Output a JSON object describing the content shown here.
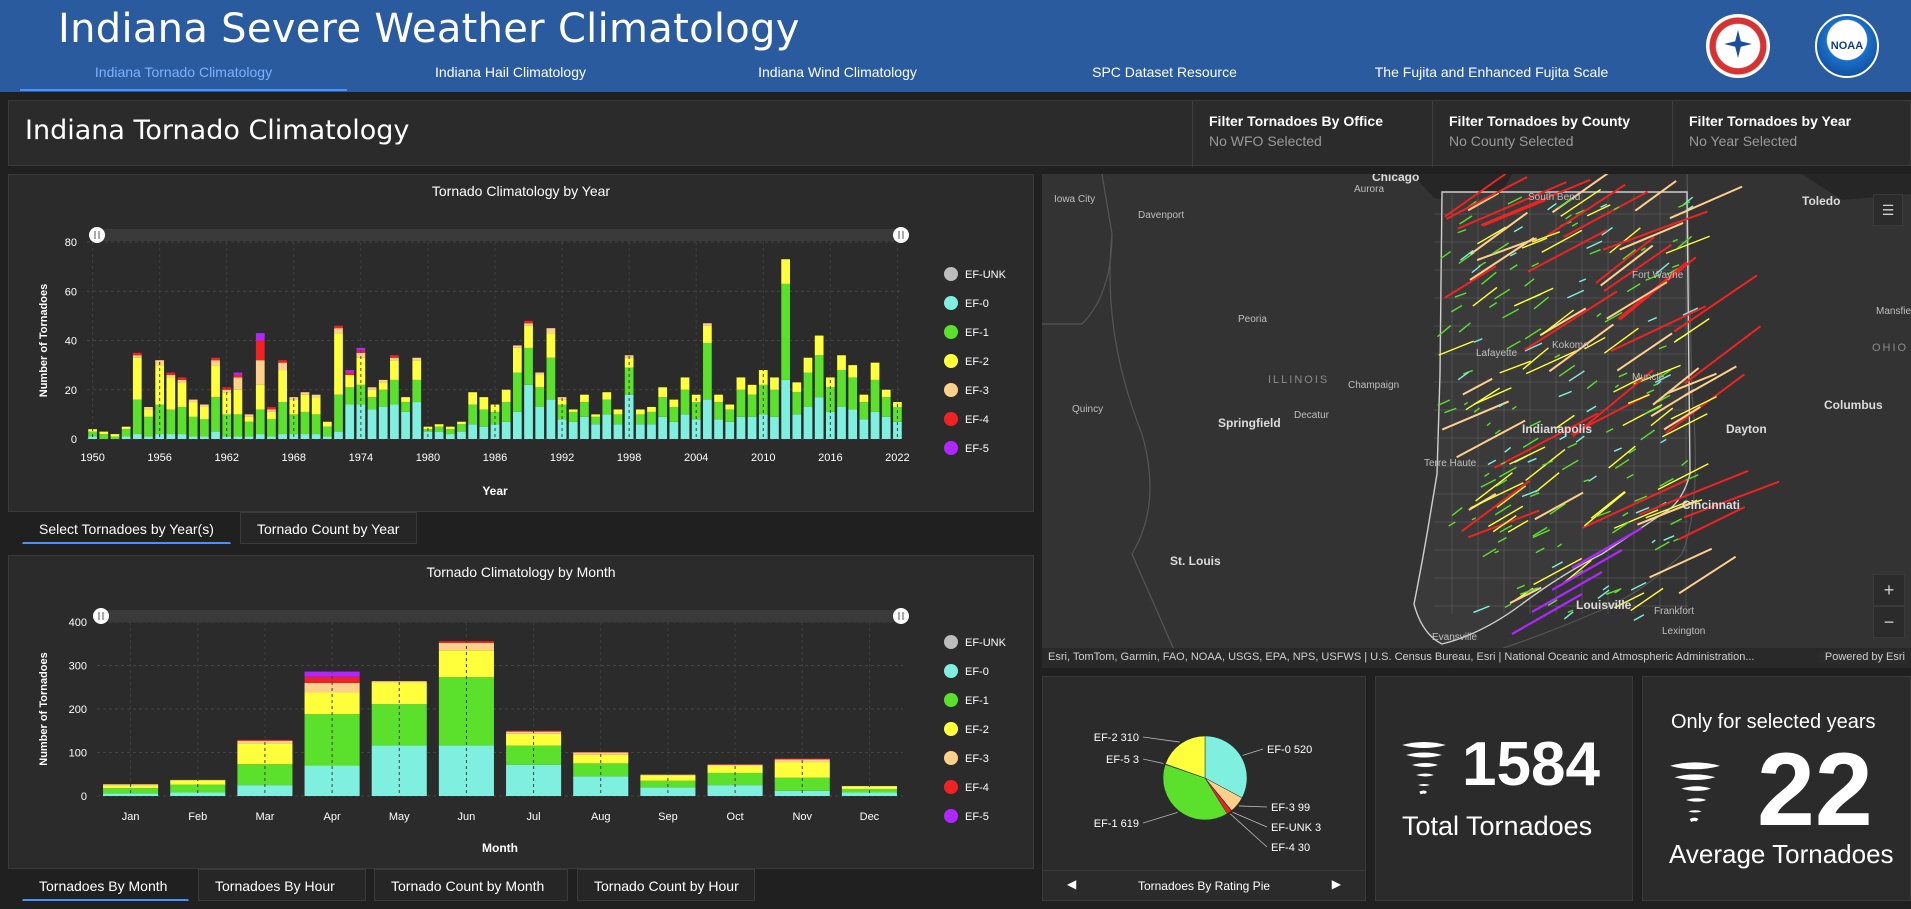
{
  "header": {
    "title": "Indiana Severe Weather Climatology",
    "nav": [
      {
        "label": "Indiana Tornado Climatology",
        "active": true
      },
      {
        "label": "Indiana Hail Climatology",
        "active": false
      },
      {
        "label": "Indiana Wind Climatology",
        "active": false
      },
      {
        "label": "SPC Dataset Resource",
        "active": false
      },
      {
        "label": "The Fujita and Enhanced Fujita Scale",
        "active": false
      }
    ],
    "logos": [
      "nws-logo",
      "noaa-logo"
    ],
    "noaa_text": "NOAA"
  },
  "page": {
    "title": "Indiana Tornado Climatology",
    "filters": [
      {
        "label": "Filter Tornadoes By Office",
        "value": "No WFO Selected"
      },
      {
        "label": "Filter Tornadoes by County",
        "value": "No County Selected"
      },
      {
        "label": "Filter Tornadoes by Year",
        "value": "No Year Selected"
      }
    ]
  },
  "colors": {
    "EF-UNK": "#bdbdbd",
    "EF-0": "#7ff0e0",
    "EF-1": "#5be02c",
    "EF-2": "#ffff3c",
    "EF-3": "#ffd08a",
    "EF-4": "#f02222",
    "EF-5": "#b026ff",
    "accent": "#4a90ff",
    "header": "#2a5b9e"
  },
  "tabs_year": [
    {
      "label": "Select Tornadoes by Year(s)",
      "active": true
    },
    {
      "label": "Tornado Count by Year",
      "active": false
    }
  ],
  "tabs_month": [
    {
      "label": "Tornadoes By Month",
      "active": true
    },
    {
      "label": "Tornadoes By Hour",
      "active": false
    },
    {
      "label": "Tornado Count by Month",
      "active": false
    },
    {
      "label": "Tornado Count by Hour",
      "active": false
    }
  ],
  "chart_data": [
    {
      "type": "bar",
      "stacked": true,
      "title": "Tornado Climatology by Year",
      "xlabel": "Year",
      "ylabel": "Number of Tornadoes",
      "ylim": [
        0,
        80
      ],
      "yticks": [
        0,
        20,
        40,
        60,
        80
      ],
      "xticks": [
        "1950",
        "1956",
        "1962",
        "1968",
        "1974",
        "1980",
        "1986",
        "1992",
        "1998",
        "2004",
        "2010",
        "2016",
        "2022"
      ],
      "legend": [
        "EF-UNK",
        "EF-0",
        "EF-1",
        "EF-2",
        "EF-3",
        "EF-4",
        "EF-5"
      ],
      "legend_position": "right",
      "grid": true,
      "year_start": 1950,
      "totals": [
        4,
        3,
        2,
        5,
        35,
        13,
        32,
        27,
        25,
        16,
        14,
        33,
        21,
        27,
        10,
        43,
        13,
        32,
        17,
        19,
        18,
        7,
        46,
        28,
        37,
        21,
        24,
        34,
        17,
        33,
        5,
        6,
        5,
        7,
        19,
        17,
        14,
        20,
        38,
        48,
        27,
        45,
        17,
        12,
        18,
        10,
        19,
        12,
        34,
        12,
        13,
        21,
        16,
        25,
        18,
        47,
        18,
        14,
        25,
        22,
        28,
        25,
        73,
        23,
        33,
        42,
        25,
        34,
        30,
        18,
        31,
        20,
        15
      ],
      "series": [
        {
          "name": "EF-0",
          "values": [
            1,
            0,
            0,
            1,
            2,
            1,
            2,
            2,
            2,
            1,
            1,
            3,
            1,
            1,
            1,
            2,
            1,
            2,
            2,
            2,
            2,
            1,
            3,
            14,
            14,
            12,
            13,
            14,
            11,
            15,
            3,
            3,
            2,
            3,
            6,
            5,
            6,
            7,
            11,
            22,
            13,
            16,
            8,
            7,
            9,
            6,
            10,
            6,
            18,
            6,
            6,
            9,
            7,
            10,
            8,
            16,
            8,
            7,
            9,
            9,
            10,
            9,
            24,
            10,
            13,
            17,
            11,
            13,
            12,
            8,
            11,
            9,
            7
          ]
        },
        {
          "name": "EF-1",
          "values": [
            2,
            2,
            1,
            3,
            14,
            8,
            12,
            10,
            11,
            8,
            7,
            14,
            9,
            9,
            6,
            10,
            7,
            13,
            8,
            9,
            8,
            4,
            15,
            7,
            8,
            5,
            7,
            10,
            4,
            9,
            1,
            2,
            2,
            3,
            8,
            7,
            5,
            8,
            16,
            15,
            8,
            17,
            6,
            4,
            6,
            3,
            6,
            4,
            11,
            4,
            5,
            8,
            6,
            10,
            7,
            23,
            7,
            5,
            11,
            9,
            12,
            11,
            39,
            9,
            14,
            17,
            10,
            15,
            13,
            7,
            13,
            8,
            6
          ]
        },
        {
          "name": "EF-2",
          "values": [
            1,
            1,
            1,
            1,
            17,
            3,
            16,
            13,
            10,
            6,
            5,
            13,
            9,
            10,
            2,
            10,
            3,
            13,
            6,
            7,
            7,
            2,
            25,
            5,
            11,
            3,
            3,
            8,
            2,
            8,
            1,
            1,
            1,
            1,
            5,
            5,
            3,
            5,
            10,
            9,
            5,
            10,
            2,
            1,
            3,
            1,
            3,
            2,
            4,
            2,
            2,
            4,
            3,
            5,
            3,
            7,
            3,
            2,
            5,
            4,
            6,
            5,
            10,
            4,
            6,
            8,
            4,
            6,
            5,
            3,
            7,
            3,
            2
          ]
        },
        {
          "name": "EF-3",
          "values": [
            0,
            0,
            0,
            0,
            1,
            1,
            2,
            1,
            1,
            1,
            1,
            2,
            1,
            5,
            1,
            10,
            1,
            3,
            1,
            1,
            1,
            0,
            2,
            0,
            2,
            1,
            1,
            1,
            0,
            1,
            0,
            0,
            0,
            0,
            0,
            0,
            0,
            0,
            1,
            1,
            1,
            2,
            1,
            0,
            0,
            0,
            0,
            0,
            1,
            0,
            0,
            0,
            0,
            0,
            0,
            1,
            0,
            0,
            0,
            0,
            0,
            0,
            0,
            0,
            0,
            0,
            0,
            0,
            0,
            0,
            0,
            0,
            0
          ]
        },
        {
          "name": "EF-4",
          "values": [
            0,
            0,
            0,
            0,
            1,
            0,
            0,
            1,
            1,
            0,
            0,
            1,
            1,
            1,
            0,
            8,
            1,
            1,
            0,
            0,
            0,
            0,
            1,
            1,
            1,
            0,
            0,
            1,
            0,
            0,
            0,
            0,
            0,
            0,
            0,
            0,
            0,
            0,
            0,
            1,
            0,
            0,
            0,
            0,
            0,
            0,
            0,
            0,
            0,
            0,
            0,
            0,
            0,
            0,
            0,
            0,
            0,
            0,
            0,
            0,
            0,
            0,
            0,
            0,
            0,
            0,
            0,
            0,
            0,
            0,
            0,
            0,
            0
          ]
        },
        {
          "name": "EF-5",
          "values": [
            0,
            0,
            0,
            0,
            0,
            0,
            0,
            0,
            0,
            0,
            0,
            0,
            0,
            1,
            0,
            3,
            0,
            0,
            0,
            0,
            0,
            0,
            0,
            1,
            1,
            0,
            0,
            0,
            0,
            0,
            0,
            0,
            0,
            0,
            0,
            0,
            0,
            0,
            0,
            0,
            0,
            0,
            0,
            0,
            0,
            0,
            0,
            0,
            0,
            0,
            0,
            0,
            0,
            0,
            0,
            0,
            0,
            0,
            0,
            0,
            0,
            0,
            0,
            0,
            0,
            0,
            0,
            0,
            0,
            0,
            0,
            0,
            0
          ]
        }
      ]
    },
    {
      "type": "bar",
      "stacked": true,
      "title": "Tornado Climatology by Month",
      "xlabel": "Month",
      "ylabel": "Number of Tornadoes",
      "ylim": [
        0,
        400
      ],
      "yticks": [
        0,
        100,
        200,
        300,
        400
      ],
      "categories": [
        "Jan",
        "Feb",
        "Mar",
        "Apr",
        "May",
        "Jun",
        "Jul",
        "Aug",
        "Sep",
        "Oct",
        "Nov",
        "Dec"
      ],
      "legend": [
        "EF-UNK",
        "EF-0",
        "EF-1",
        "EF-2",
        "EF-3",
        "EF-4",
        "EF-5"
      ],
      "legend_position": "right",
      "grid": true,
      "series": [
        {
          "name": "EF-0",
          "values": [
            6,
            8,
            25,
            70,
            116,
            116,
            72,
            45,
            20,
            25,
            12,
            8
          ]
        },
        {
          "name": "EF-1",
          "values": [
            12,
            18,
            48,
            118,
            95,
            157,
            44,
            30,
            15,
            28,
            30,
            8
          ]
        },
        {
          "name": "EF-2",
          "values": [
            7,
            10,
            48,
            50,
            50,
            62,
            27,
            20,
            12,
            16,
            36,
            6
          ]
        },
        {
          "name": "EF-3",
          "values": [
            2,
            1,
            6,
            22,
            3,
            17,
            5,
            5,
            2,
            3,
            6,
            1
          ]
        },
        {
          "name": "EF-4",
          "values": [
            0,
            0,
            2,
            14,
            0,
            4,
            2,
            1,
            0,
            1,
            2,
            0
          ]
        },
        {
          "name": "EF-5",
          "values": [
            0,
            0,
            0,
            12,
            0,
            0,
            0,
            0,
            0,
            0,
            0,
            0
          ]
        }
      ]
    },
    {
      "type": "pie",
      "title": "",
      "slices": [
        {
          "label": "EF-0",
          "value": 520
        },
        {
          "label": "EF-3",
          "value": 99
        },
        {
          "label": "EF-UNK",
          "value": 3
        },
        {
          "label": "EF-4",
          "value": 30
        },
        {
          "label": "EF-1",
          "value": 619
        },
        {
          "label": "EF-5",
          "value": 3
        },
        {
          "label": "EF-2",
          "value": 310
        }
      ]
    }
  ],
  "pie_footer": {
    "label": "Tornadoes By Rating Pie"
  },
  "kpis": {
    "total_value": "1584",
    "total_caption": "Total Tornadoes",
    "avg_top": "Only for selected years",
    "avg_value": "22",
    "avg_caption": "Average Tornadoes"
  },
  "map": {
    "labels": [
      {
        "text": "Chicago",
        "cls": "big"
      },
      {
        "text": "Iowa City",
        "cls": ""
      },
      {
        "text": "Aurora",
        "cls": ""
      },
      {
        "text": "Davenport",
        "cls": ""
      },
      {
        "text": "South Bend",
        "cls": ""
      },
      {
        "text": "Toledo",
        "cls": "big"
      },
      {
        "text": "Fort Wayne",
        "cls": ""
      },
      {
        "text": "Peoria",
        "cls": ""
      },
      {
        "text": "Mansfie",
        "cls": ""
      },
      {
        "text": "OHIO",
        "cls": "state"
      },
      {
        "text": "Lafayette",
        "cls": ""
      },
      {
        "text": "Kokomo",
        "cls": ""
      },
      {
        "text": "ILLINOIS",
        "cls": "state"
      },
      {
        "text": "Champaign",
        "cls": ""
      },
      {
        "text": "Muncie",
        "cls": ""
      },
      {
        "text": "Quincy",
        "cls": ""
      },
      {
        "text": "Columbus",
        "cls": "big"
      },
      {
        "text": "Springfield",
        "cls": "big"
      },
      {
        "text": "Decatur",
        "cls": ""
      },
      {
        "text": "Indianapolis",
        "cls": "big"
      },
      {
        "text": "Dayton",
        "cls": "big"
      },
      {
        "text": "Terre Haute",
        "cls": ""
      },
      {
        "text": "Cincinnati",
        "cls": "big"
      },
      {
        "text": "St. Louis",
        "cls": "big"
      },
      {
        "text": "Louisville",
        "cls": "big"
      },
      {
        "text": "Frankfort",
        "cls": ""
      },
      {
        "text": "Lexington",
        "cls": ""
      },
      {
        "text": "Evansville",
        "cls": ""
      }
    ],
    "attribution": "Esri, TomTom, Garmin, FAO, NOAA, USGS, EPA, NPS, USFWS | U.S. Census Bureau, Esri | National Oceanic and Atmospheric Administration...",
    "powered_by": "Powered by Esri",
    "zoom_in": "+",
    "zoom_out": "−"
  }
}
